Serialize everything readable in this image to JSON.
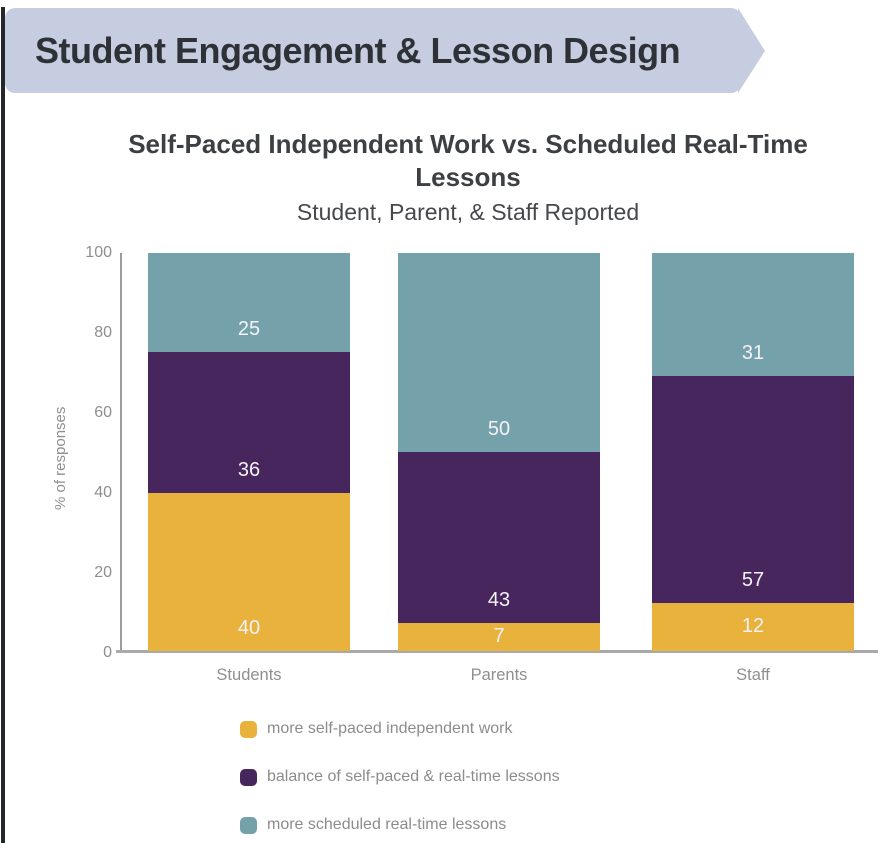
{
  "header": {
    "banner_label": "Student Engagement & Lesson Design"
  },
  "chart": {
    "title_line1": "Self-Paced Independent Work vs. Scheduled Real-Time",
    "title_line2": "Lessons",
    "subtitle": "Student, Parent, & Staff Reported"
  },
  "chart_data": {
    "type": "bar",
    "stacked": true,
    "percent_stacked": true,
    "title": "Self-Paced Independent Work vs. Scheduled Real-Time Lessons",
    "subtitle": "Student, Parent, & Staff Reported",
    "categories": [
      "Students",
      "Parents",
      "Staff"
    ],
    "series": [
      {
        "name": "more self-paced independent work",
        "color": "#e9b23d",
        "values": [
          40,
          7,
          12
        ]
      },
      {
        "name": "balance of self-paced & real-time lessons",
        "color": "#46265c",
        "values": [
          36,
          43,
          57
        ]
      },
      {
        "name": "more scheduled real-time lessons",
        "color": "#75a1ab",
        "values": [
          25,
          50,
          31
        ]
      }
    ],
    "xlabel": "",
    "ylabel": "% of responses",
    "yticks": [
      0,
      20,
      40,
      60,
      80,
      100
    ],
    "ylim": [
      0,
      100
    ],
    "bar_label_color": "#ffffff",
    "axis_text_color": "#8f8f8f",
    "grid": false,
    "legend_position": "bottom-left",
    "banner_color": "#c7cde1"
  }
}
